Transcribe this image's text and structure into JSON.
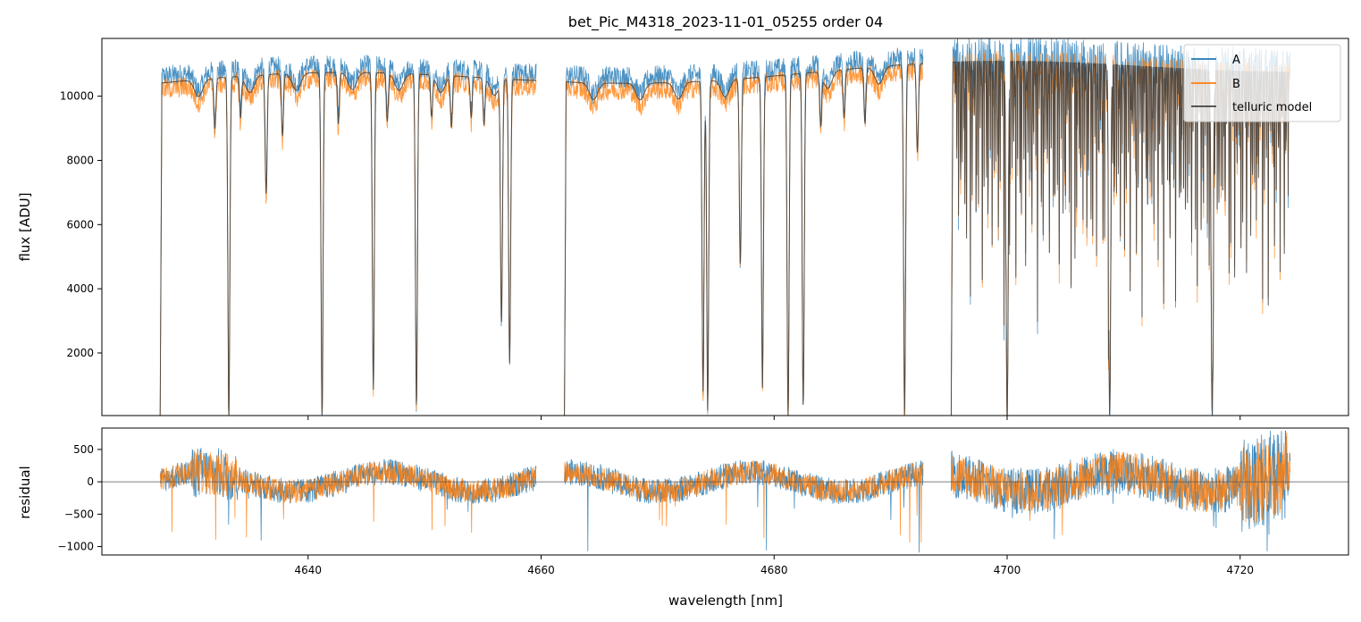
{
  "chart_data": [
    {
      "type": "line",
      "panel": "spectrum",
      "title": "bet_Pic_M4318_2023-11-01_05255  order 04",
      "xlabel": "",
      "ylabel": "flux [ADU]",
      "xlim": [
        4622.3,
        4729.3
      ],
      "ylim": [
        50,
        11800
      ],
      "yticks": [
        2000,
        4000,
        6000,
        8000,
        10000
      ],
      "legend": {
        "placement": "top-right",
        "entries": [
          "A",
          "B",
          "telluric model"
        ]
      },
      "segments": [
        [
          4627.3,
          4659.6
        ],
        [
          4662.0,
          4692.8
        ],
        [
          4695.2,
          4724.3
        ]
      ],
      "absorption_lines": [
        {
          "x": 4632.0,
          "depth": 0.15
        },
        {
          "x": 4633.2,
          "depth": 1.0
        },
        {
          "x": 4634.2,
          "depth": 0.12
        },
        {
          "x": 4636.4,
          "depth": 0.35
        },
        {
          "x": 4637.8,
          "depth": 0.18
        },
        {
          "x": 4641.2,
          "depth": 1.0
        },
        {
          "x": 4642.6,
          "depth": 0.15
        },
        {
          "x": 4645.6,
          "depth": 0.92
        },
        {
          "x": 4646.8,
          "depth": 0.14
        },
        {
          "x": 4649.3,
          "depth": 0.97
        },
        {
          "x": 4650.6,
          "depth": 0.12
        },
        {
          "x": 4652.3,
          "depth": 0.15
        },
        {
          "x": 4654.0,
          "depth": 0.12
        },
        {
          "x": 4655.1,
          "depth": 0.14
        },
        {
          "x": 4656.6,
          "depth": 0.72
        },
        {
          "x": 4657.3,
          "depth": 0.84
        },
        {
          "x": 4673.9,
          "depth": 0.93
        },
        {
          "x": 4674.3,
          "depth": 0.98
        },
        {
          "x": 4677.1,
          "depth": 0.55
        },
        {
          "x": 4679.0,
          "depth": 0.92
        },
        {
          "x": 4681.2,
          "depth": 1.0
        },
        {
          "x": 4682.5,
          "depth": 0.97
        },
        {
          "x": 4684.0,
          "depth": 0.15
        },
        {
          "x": 4686.0,
          "depth": 0.14
        },
        {
          "x": 4687.8,
          "depth": 0.16
        },
        {
          "x": 4691.2,
          "depth": 1.0
        },
        {
          "x": 4692.3,
          "depth": 0.25
        },
        {
          "x": 4700.0,
          "depth": 1.0
        },
        {
          "x": 4708.8,
          "depth": 1.0
        },
        {
          "x": 4717.6,
          "depth": 1.0
        }
      ],
      "series": [
        {
          "name": "A",
          "color": "#1f77b4",
          "continuum": [
            10600,
            11200
          ],
          "continuum_x": [
            4627.3,
            4724.3
          ]
        },
        {
          "name": "B",
          "color": "#ff7f0e",
          "continuum": [
            10200,
            10800
          ],
          "continuum_x": [
            4627.3,
            4724.3
          ]
        },
        {
          "name": "telluric model",
          "color": "#404040",
          "continuum": [
            10400,
            11000
          ],
          "continuum_x": [
            4627.3,
            4724.3
          ]
        }
      ]
    },
    {
      "type": "line",
      "panel": "residual",
      "title": "",
      "xlabel": "wavelength [nm]",
      "ylabel": "residual",
      "xlim": [
        4622.3,
        4729.3
      ],
      "ylim": [
        -1130,
        830
      ],
      "yticks": [
        -1000,
        -500,
        0,
        500
      ],
      "xticks": [
        4640,
        4660,
        4680,
        4700,
        4720
      ],
      "zero_line": true,
      "series": [
        {
          "name": "A",
          "color": "#1f77b4",
          "typical_amplitude": 200,
          "max_amplitude": 1100
        },
        {
          "name": "B",
          "color": "#ff7f0e",
          "typical_amplitude": 180,
          "max_amplitude": 1000
        }
      ]
    }
  ]
}
